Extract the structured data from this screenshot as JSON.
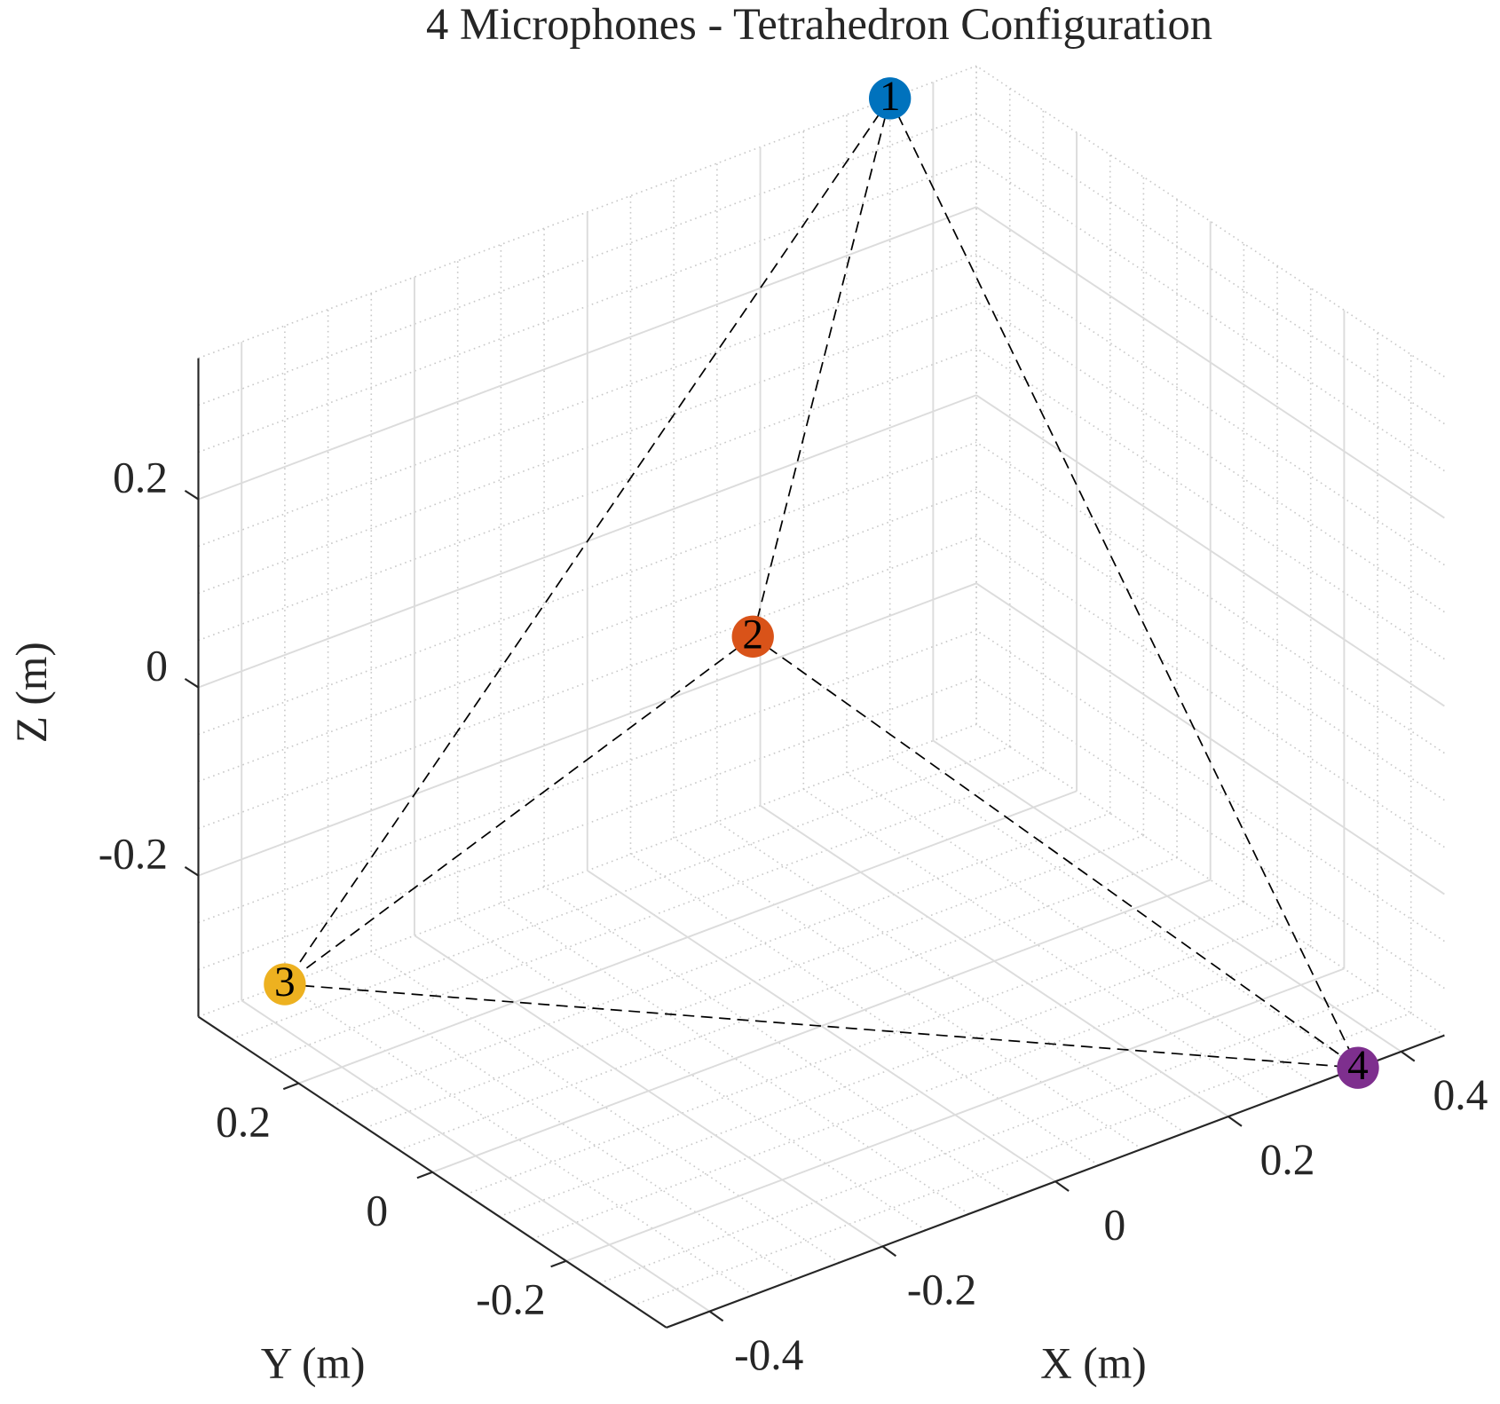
{
  "chart_data": {
    "type": "scatter3d",
    "title": "4 Microphones - Tetrahedron Configuration",
    "xlabel": "X (m)",
    "ylabel": "Y (m)",
    "zlabel": "Z (m)",
    "labels": [
      "1",
      "2",
      "3",
      "4"
    ],
    "x": [
      0.35,
      -0.35,
      -0.35,
      0.35
    ],
    "y": [
      0.35,
      -0.35,
      0.35,
      -0.35
    ],
    "z": [
      0.35,
      0.35,
      -0.35,
      -0.35
    ],
    "colors": [
      "#0072bd",
      "#d95319",
      "#edb120",
      "#7e2f8e"
    ],
    "edges": true,
    "xlim": [
      -0.45,
      0.45
    ],
    "ylim": [
      -0.35,
      0.35
    ],
    "zlim": [
      -0.35,
      0.35
    ],
    "xticks": [
      -0.4,
      -0.2,
      0,
      0.2,
      0.4
    ],
    "yticks": [
      -0.2,
      0,
      0.2
    ],
    "zticks": [
      -0.2,
      0,
      0.2
    ],
    "grid": true,
    "minor_grid": true
  }
}
